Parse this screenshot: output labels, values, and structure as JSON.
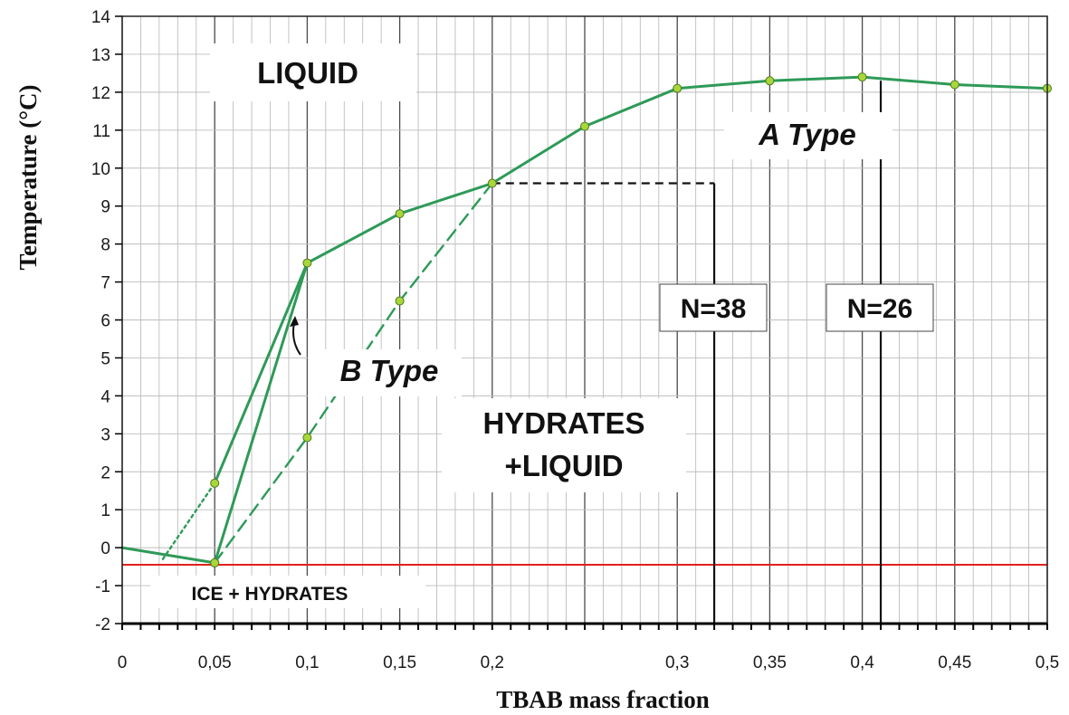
{
  "chart_data": {
    "type": "line",
    "xlabel": "TBAB mass fraction",
    "ylabel": "Temperature (°C)",
    "xlim": [
      0,
      0.5
    ],
    "ylim": [
      -2,
      14
    ],
    "x_ticks": [
      {
        "value": 0,
        "label": "0"
      },
      {
        "value": 0.05,
        "label": "0,05"
      },
      {
        "value": 0.1,
        "label": "0,1"
      },
      {
        "value": 0.15,
        "label": "0,15"
      },
      {
        "value": 0.2,
        "label": "0,2"
      },
      {
        "value": 0.3,
        "label": "0,3"
      },
      {
        "value": 0.35,
        "label": "0,35"
      },
      {
        "value": 0.4,
        "label": "0,4"
      },
      {
        "value": 0.45,
        "label": "0,45"
      },
      {
        "value": 0.5,
        "label": "0,5"
      }
    ],
    "y_ticks": [
      {
        "value": 14,
        "label": "14"
      },
      {
        "value": 13,
        "label": "13"
      },
      {
        "value": 12,
        "label": "12"
      },
      {
        "value": 11,
        "label": "11"
      },
      {
        "value": 10,
        "label": "10"
      },
      {
        "value": 9,
        "label": "9"
      },
      {
        "value": 8,
        "label": "8"
      },
      {
        "value": 7,
        "label": "7"
      },
      {
        "value": 6,
        "label": "6"
      },
      {
        "value": 5,
        "label": "5"
      },
      {
        "value": 4,
        "label": "4"
      },
      {
        "value": 3,
        "label": "3"
      },
      {
        "value": 2,
        "label": "2"
      },
      {
        "value": 1,
        "label": "1"
      },
      {
        "value": 0,
        "label": "0"
      },
      {
        "value": -1,
        "label": "-1"
      },
      {
        "value": -2,
        "label": "-2"
      }
    ],
    "grid": true,
    "series": [
      {
        "id": "liquidus",
        "style": "solid",
        "color": "#2e9a58",
        "x": [
          0,
          0.05,
          0.1,
          0.15,
          0.2,
          0.25,
          0.3,
          0.35,
          0.4,
          0.45,
          0.5
        ],
        "y": [
          0,
          -0.4,
          7.5,
          8.8,
          9.6,
          11.1,
          12.1,
          12.3,
          12.4,
          12.2,
          12.1
        ],
        "markers": [
          false,
          true,
          true,
          true,
          true,
          true,
          true,
          true,
          true,
          true,
          true
        ]
      },
      {
        "id": "b-type-metastable",
        "style": "dashed",
        "color": "#2e9a58",
        "x": [
          0.05,
          0.1,
          0.15,
          0.2
        ],
        "y": [
          -0.4,
          2.9,
          6.5,
          9.6
        ],
        "markers": [
          false,
          true,
          true,
          false
        ]
      },
      {
        "id": "b-type-extension",
        "style": "dotted",
        "color": "#2e9a58",
        "x": [
          0.022,
          0.05
        ],
        "y": [
          -0.3,
          1.7
        ],
        "markers": [
          false,
          true
        ]
      }
    ],
    "extra_curve": {
      "color": "#2e9a58",
      "x": [
        0.05,
        0.1
      ],
      "y": [
        1.7,
        7.5
      ]
    },
    "reference_line": {
      "y": -0.45,
      "color": "#e0211c"
    },
    "composition_markers": [
      {
        "x": 0.32,
        "label": "N=38",
        "label_y": 6.2
      },
      {
        "x": 0.41,
        "label": "N=26",
        "label_y": 6.2
      }
    ],
    "peritectic_line": {
      "y": 9.6,
      "x_from": 0.2,
      "x_to": 0.32
    },
    "regions": [
      {
        "id": "liquid",
        "text": "LIQUID"
      },
      {
        "id": "hydrates-liquid",
        "lines": [
          "HYDRATES",
          "+LIQUID"
        ]
      },
      {
        "id": "ice-hydrates",
        "text": "ICE + HYDRATES"
      }
    ],
    "type_labels": {
      "a": "A Type",
      "b": "B Type"
    }
  }
}
